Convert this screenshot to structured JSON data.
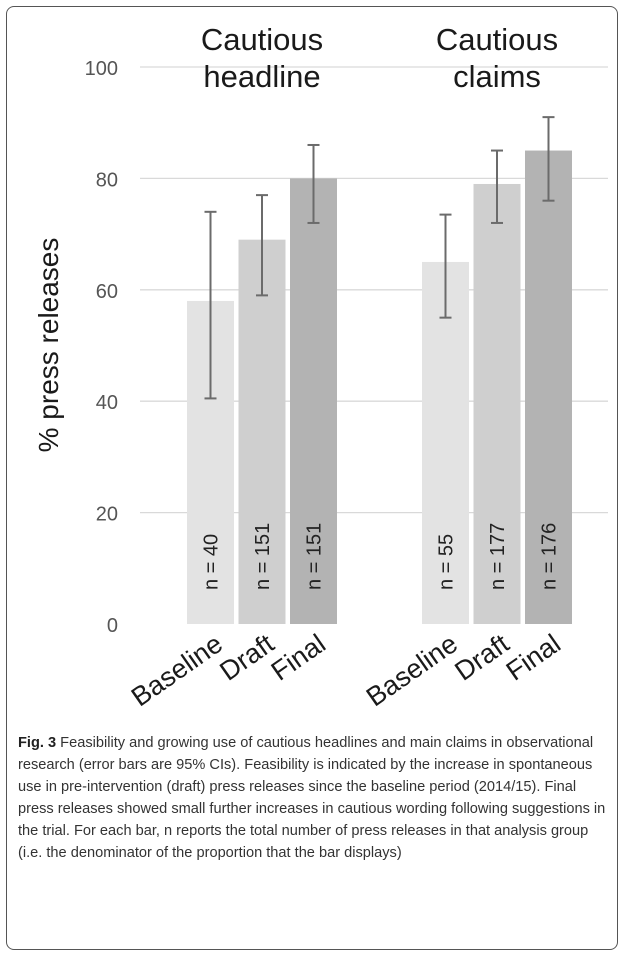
{
  "chart_data": {
    "type": "bar",
    "title": "",
    "xlabel": "",
    "ylabel": "% press releases",
    "ylim": [
      0,
      100
    ],
    "yticks": [
      0,
      20,
      40,
      60,
      80,
      100
    ],
    "grid": true,
    "groups": [
      {
        "name": "Cautious headline",
        "categories": [
          "Baseline",
          "Draft",
          "Final"
        ],
        "values": [
          58,
          69,
          80
        ],
        "ci_low": [
          40.5,
          59,
          72
        ],
        "ci_high": [
          74,
          77,
          86
        ],
        "n_labels": [
          "n = 40",
          "n = 151",
          "n = 151"
        ]
      },
      {
        "name": "Cautious claims",
        "categories": [
          "Baseline",
          "Draft",
          "Final"
        ],
        "values": [
          65,
          79,
          85
        ],
        "ci_low": [
          55,
          72,
          76
        ],
        "ci_high": [
          73.5,
          85,
          91
        ],
        "n_labels": [
          "n = 55",
          "n = 177",
          "n = 176"
        ]
      }
    ],
    "bar_colors": [
      "#e3e3e3",
      "#cfcfcf",
      "#b3b3b3"
    ],
    "error_bar_color": "#6b6b6b",
    "gridline_color": "#d9d9d9"
  },
  "caption": {
    "label": "Fig. 3",
    "text": "Feasibility and growing use of cautious headlines and main claims in observational research (error bars are 95% CIs). Feasibility is indicated by the increase in spontaneous use in pre-intervention (draft) press releases since the baseline period (2014/15). Final press releases showed small further increases in cautious wording following suggestions in the trial. For each bar, n reports the total number of press releases in that analysis group (i.e. the denominator of the proportion that the bar displays)"
  }
}
